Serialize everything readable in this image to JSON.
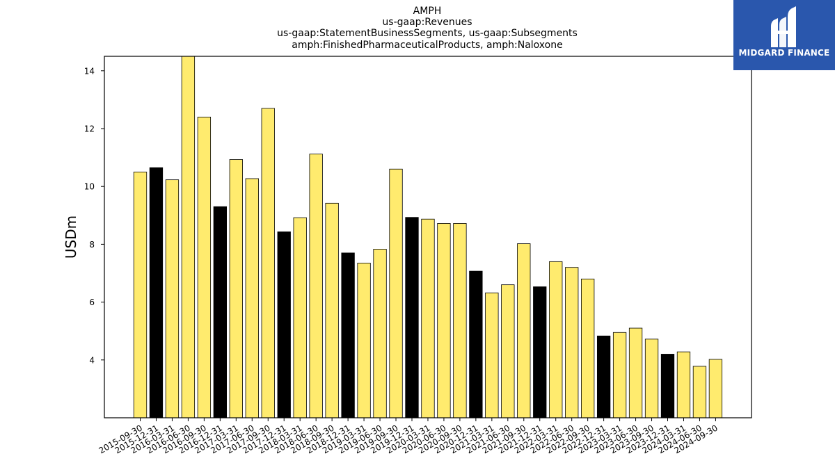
{
  "title_lines": [
    "AMPH",
    "us-gaap:Revenues",
    "us-gaap:StatementBusinessSegments, us-gaap:Subsegments",
    "amph:FinishedPharmaceuticalProducts, amph:Naloxone"
  ],
  "brand": {
    "name": "MIDGARD FINANCE",
    "color": "#2a57ad",
    "icon": "midgard-logo-icon"
  },
  "colors": {
    "bar_default": "#ffeb6e",
    "bar_highlight": "#000000",
    "bar_edge": "#000000"
  },
  "chart_data": {
    "type": "bar",
    "title": "AMPH\nus-gaap:Revenues\nus-gaap:StatementBusinessSegments, us-gaap:Subsegments\namph:FinishedPharmaceuticalProducts, amph:Naloxone",
    "xlabel": "",
    "ylabel": "USDm",
    "ylim": [
      2.0,
      14.5
    ],
    "yticks": [
      4,
      6,
      8,
      10,
      12,
      14
    ],
    "grid": false,
    "categories": [
      "2015-09-30",
      "2015-12-31",
      "2016-03-31",
      "2016-06-30",
      "2016-09-30",
      "2016-12-31",
      "2017-03-31",
      "2017-06-30",
      "2017-09-30",
      "2017-12-31",
      "2018-03-31",
      "2018-06-30",
      "2018-09-30",
      "2018-12-31",
      "2019-03-31",
      "2019-06-30",
      "2019-09-30",
      "2019-12-31",
      "2020-03-31",
      "2020-06-30",
      "2020-09-30",
      "2020-12-31",
      "2021-03-31",
      "2021-06-30",
      "2021-09-30",
      "2021-12-31",
      "2022-03-31",
      "2022-06-30",
      "2022-09-30",
      "2022-12-31",
      "2023-03-31",
      "2023-06-30",
      "2023-09-30",
      "2023-12-31",
      "2024-03-31",
      "2024-06-30",
      "2024-09-30"
    ],
    "values": [
      10.5,
      10.65,
      10.23,
      14.5,
      12.4,
      9.3,
      10.93,
      10.27,
      12.7,
      8.43,
      8.92,
      11.12,
      9.42,
      7.7,
      7.35,
      7.83,
      10.6,
      8.93,
      8.87,
      8.72,
      8.72,
      7.07,
      6.32,
      6.6,
      8.02,
      6.53,
      7.4,
      7.2,
      6.8,
      4.83,
      4.95,
      5.1,
      4.72,
      4.2,
      4.28,
      3.78,
      4.02
    ],
    "highlighted_categories": [
      "2015-12-31",
      "2016-12-31",
      "2017-12-31",
      "2018-12-31",
      "2019-12-31",
      "2020-12-31",
      "2021-12-31",
      "2022-12-31",
      "2023-12-31"
    ]
  }
}
